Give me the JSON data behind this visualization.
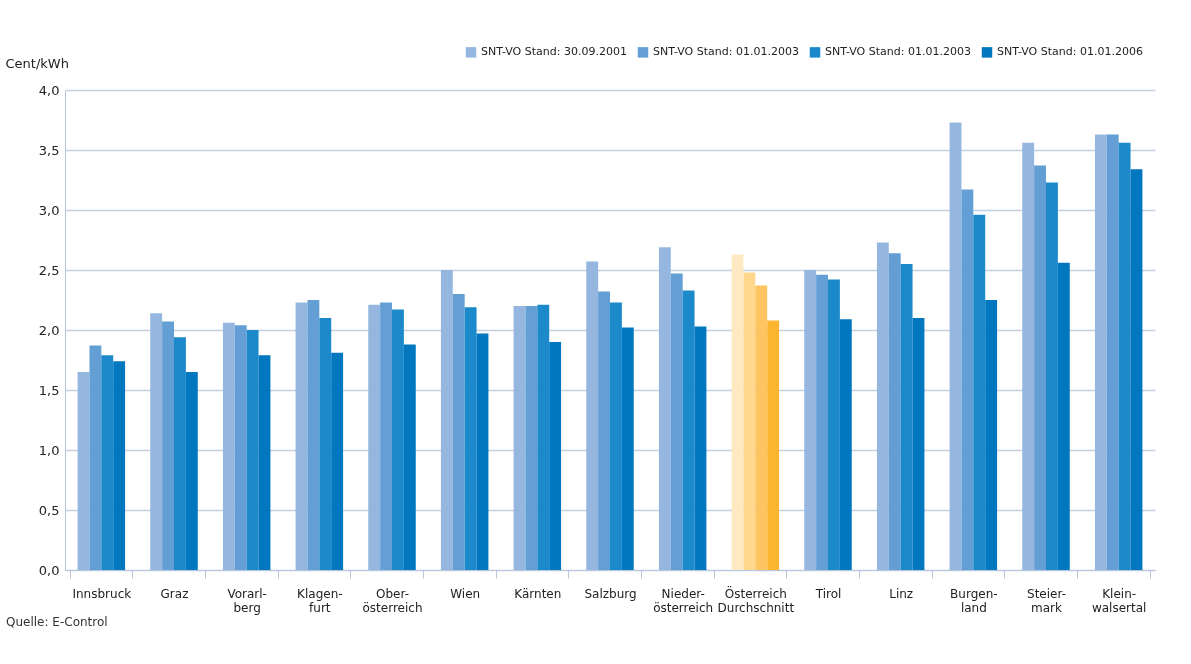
{
  "chart_data": {
    "type": "bar",
    "ylabel": "Cent/kWh",
    "categories": [
      "Innsbruck",
      "Graz",
      "Vorarl-\nberg",
      "Klagen-\nfurt",
      "Ober-\nösterreich",
      "Wien",
      "Kärnten",
      "Salzburg",
      "Nieder-\nösterreich",
      "Österreich\nDurchschnitt",
      "Tirol",
      "Linz",
      "Burgen-\nland",
      "Steier-\nmark",
      "Klein-\nwalsertal"
    ],
    "series": [
      {
        "name": "SNT-VO Stand: 30.09.2001",
        "color": "#95b7df",
        "colors": [
          "#95b7df",
          "#95b7df",
          "#95b7df",
          "#95b7df",
          "#95b7df",
          "#95b7df",
          "#95b7df",
          "#95b7df",
          "#95b7df",
          "#ffe9c3",
          "#95b7df",
          "#95b7df",
          "#95b7df",
          "#95b7df",
          "#95b7df"
        ],
        "values": [
          1.65,
          2.14,
          2.06,
          2.23,
          2.21,
          2.5,
          2.2,
          2.57,
          2.69,
          2.63,
          2.5,
          2.73,
          3.73,
          3.56,
          3.63
        ]
      },
      {
        "name": "SNT-VO Stand: 01.01.2003",
        "color": "#639fd5",
        "colors": [
          "#639fd5",
          "#639fd5",
          "#639fd5",
          "#639fd5",
          "#639fd5",
          "#639fd5",
          "#639fd5",
          "#639fd5",
          "#639fd5",
          "#ffd88e",
          "#639fd5",
          "#639fd5",
          "#639fd5",
          "#639fd5",
          "#639fd5"
        ],
        "values": [
          1.87,
          2.07,
          2.04,
          2.25,
          2.23,
          2.3,
          2.2,
          2.32,
          2.47,
          2.48,
          2.46,
          2.64,
          3.17,
          3.37,
          3.63
        ]
      },
      {
        "name": "SNT-VO Stand: 01.01.2003",
        "color": "#1b89ca",
        "colors": [
          "#1b89ca",
          "#1b89ca",
          "#1b89ca",
          "#1b89ca",
          "#1b89ca",
          "#1b89ca",
          "#1b89ca",
          "#1b89ca",
          "#1b89ca",
          "#fdc561",
          "#1b89ca",
          "#1b89ca",
          "#1b89ca",
          "#1b89ca",
          "#1b89ca"
        ],
        "values": [
          1.79,
          1.94,
          2.0,
          2.1,
          2.17,
          2.19,
          2.21,
          2.23,
          2.33,
          2.37,
          2.42,
          2.55,
          2.96,
          3.23,
          3.56
        ]
      },
      {
        "name": "SNT-VO Stand: 01.01.2006",
        "color": "#0077bf",
        "colors": [
          "#0077bf",
          "#0077bf",
          "#0077bf",
          "#0077bf",
          "#0077bf",
          "#0077bf",
          "#0077bf",
          "#0077bf",
          "#0077bf",
          "#fdb62f",
          "#0077bf",
          "#0077bf",
          "#0077bf",
          "#0077bf",
          "#0077bf"
        ],
        "values": [
          1.74,
          1.65,
          1.79,
          1.81,
          1.88,
          1.97,
          1.9,
          2.02,
          2.03,
          2.08,
          2.09,
          2.1,
          2.25,
          2.56,
          3.34
        ]
      }
    ],
    "ylim": [
      0,
      4
    ],
    "yticks": [
      {
        "value": 0,
        "label": "0,0"
      },
      {
        "value": 0.5,
        "label": "0,5"
      },
      {
        "value": 1,
        "label": "1,0"
      },
      {
        "value": 1.5,
        "label": "1,5"
      },
      {
        "value": 2,
        "label": "2,0"
      },
      {
        "value": 2.5,
        "label": "2,5"
      },
      {
        "value": 3,
        "label": "3,0"
      },
      {
        "value": 3.5,
        "label": "3,5"
      },
      {
        "value": 4,
        "label": "4,0"
      }
    ],
    "grid": "y",
    "legend": "top right",
    "annotations": [
      "Quelle: E-Control"
    ]
  }
}
